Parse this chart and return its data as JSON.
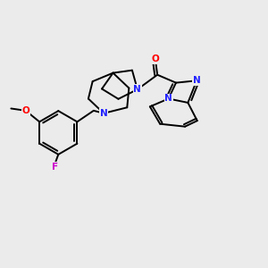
{
  "background_color": "#ebebeb",
  "C": "#000000",
  "N": "#2222ff",
  "O": "#ff0000",
  "F": "#cc00cc",
  "lw": 1.4,
  "fs": 7.5
}
